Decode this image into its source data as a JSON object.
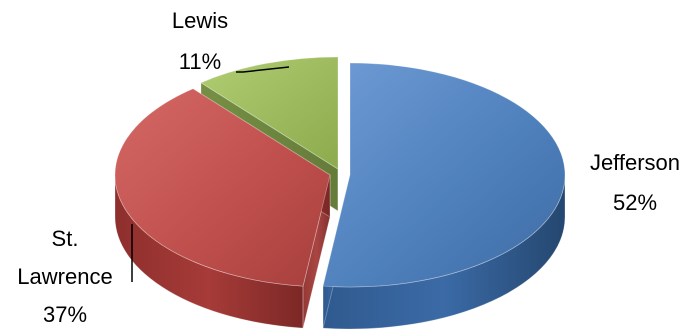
{
  "chart_data": {
    "type": "pie",
    "style": "3d-exploded",
    "title": "",
    "slices": [
      {
        "name": "Jefferson",
        "value": 52,
        "label": "52%",
        "color": "#4f81bd"
      },
      {
        "name": "St. Lawrence",
        "value": 37,
        "label": "37%",
        "color": "#c0504d"
      },
      {
        "name": "Lewis",
        "value": 11,
        "label": "11%",
        "color": "#9bbb59"
      }
    ],
    "label_lines": {
      "st_lawrence": [
        "St.",
        "Lawrence"
      ]
    },
    "legend": "none",
    "data_labels": "category-name-and-percent"
  }
}
